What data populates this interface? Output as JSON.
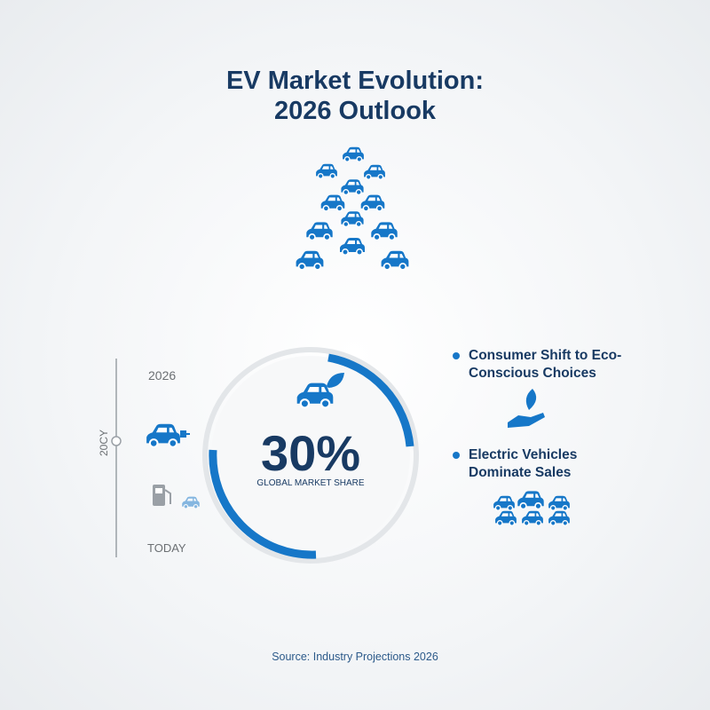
{
  "header": {
    "title_lines": [
      "EV Market Evolution:",
      "2026 Outlook"
    ]
  },
  "timeline": {
    "axis_label": "20CY",
    "top_label": "2026",
    "bottom_label": "TODAY"
  },
  "gauge": {
    "value": "30%",
    "caption": "GLOBAL MARKET SHARE"
  },
  "highlights": [
    "Consumer Shift to Eco-Conscious Choices",
    "Electric Vehicles Dominate Sales"
  ],
  "footer": {
    "source": "Source: Industry Projections 2026"
  }
}
